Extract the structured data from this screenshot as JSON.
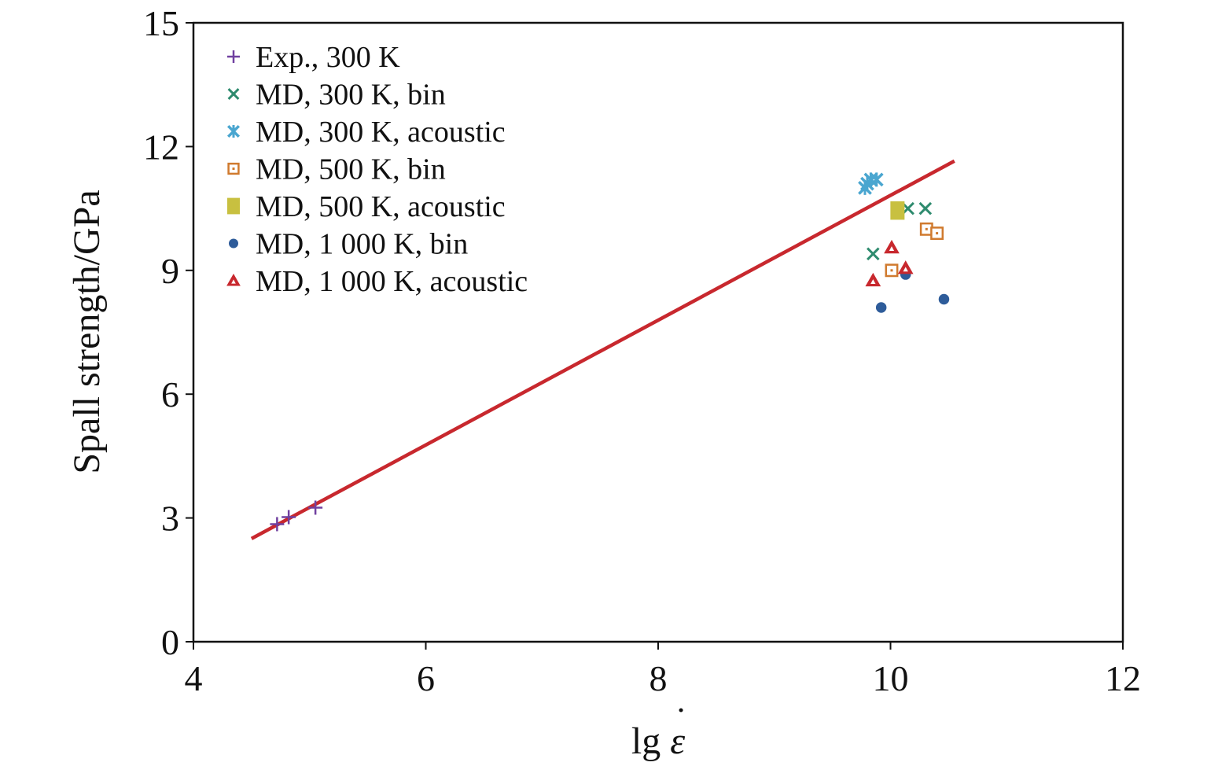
{
  "chart_data": {
    "type": "scatter",
    "title": "",
    "xlabel_prefix": "lg ",
    "xlabel_symbol": "ε",
    "xlabel_dot": "˙",
    "ylabel": "Spall strength/GPa",
    "xlim": [
      4,
      12
    ],
    "ylim": [
      0,
      15
    ],
    "xticks": [
      4,
      6,
      8,
      10,
      12
    ],
    "yticks": [
      0,
      3,
      6,
      9,
      12,
      15
    ],
    "xtick_labels": [
      "4",
      "6",
      "8",
      "10",
      "12"
    ],
    "ytick_labels": [
      "0",
      "3",
      "6",
      "9",
      "12",
      "15"
    ],
    "grid": false,
    "legend_position": "top-left",
    "fit_line": {
      "name": "fit",
      "color": "#c8282e",
      "x": [
        4.5,
        10.55
      ],
      "y": [
        2.5,
        11.65
      ]
    },
    "series": [
      {
        "name": "Exp., 300 K",
        "marker": "plus",
        "color": "#7040a0",
        "x": [
          4.72,
          4.82,
          5.05
        ],
        "y": [
          2.85,
          3.02,
          3.25
        ]
      },
      {
        "name": "MD, 300 K, bin",
        "marker": "x",
        "color": "#2e8b6e",
        "x": [
          9.85,
          10.15,
          10.3
        ],
        "y": [
          9.4,
          10.5,
          10.5
        ]
      },
      {
        "name": "MD, 300 K, acoustic",
        "marker": "asterisk",
        "color": "#4aa6d0",
        "x": [
          9.78,
          9.83,
          9.88,
          9.8
        ],
        "y": [
          11.0,
          11.2,
          11.2,
          11.1
        ]
      },
      {
        "name": "MD, 500 K, bin",
        "marker": "square-open",
        "color": "#d07a2e",
        "x": [
          10.01,
          10.31,
          10.4
        ],
        "y": [
          9.0,
          10.0,
          9.9
        ]
      },
      {
        "name": "MD, 500 K, acoustic",
        "marker": "square-filled",
        "color": "#c8c040",
        "x": [
          10.06
        ],
        "y": [
          10.45
        ]
      },
      {
        "name": "MD, 1 000 K, bin",
        "marker": "circle",
        "color": "#2e5c9a",
        "x": [
          9.92,
          10.13,
          10.46
        ],
        "y": [
          8.1,
          8.9,
          8.3
        ]
      },
      {
        "name": "MD, 1 000 K, acoustic",
        "marker": "triangle",
        "color": "#c8282e",
        "x": [
          9.85,
          10.01,
          10.13
        ],
        "y": [
          8.75,
          9.55,
          9.05
        ]
      }
    ]
  }
}
